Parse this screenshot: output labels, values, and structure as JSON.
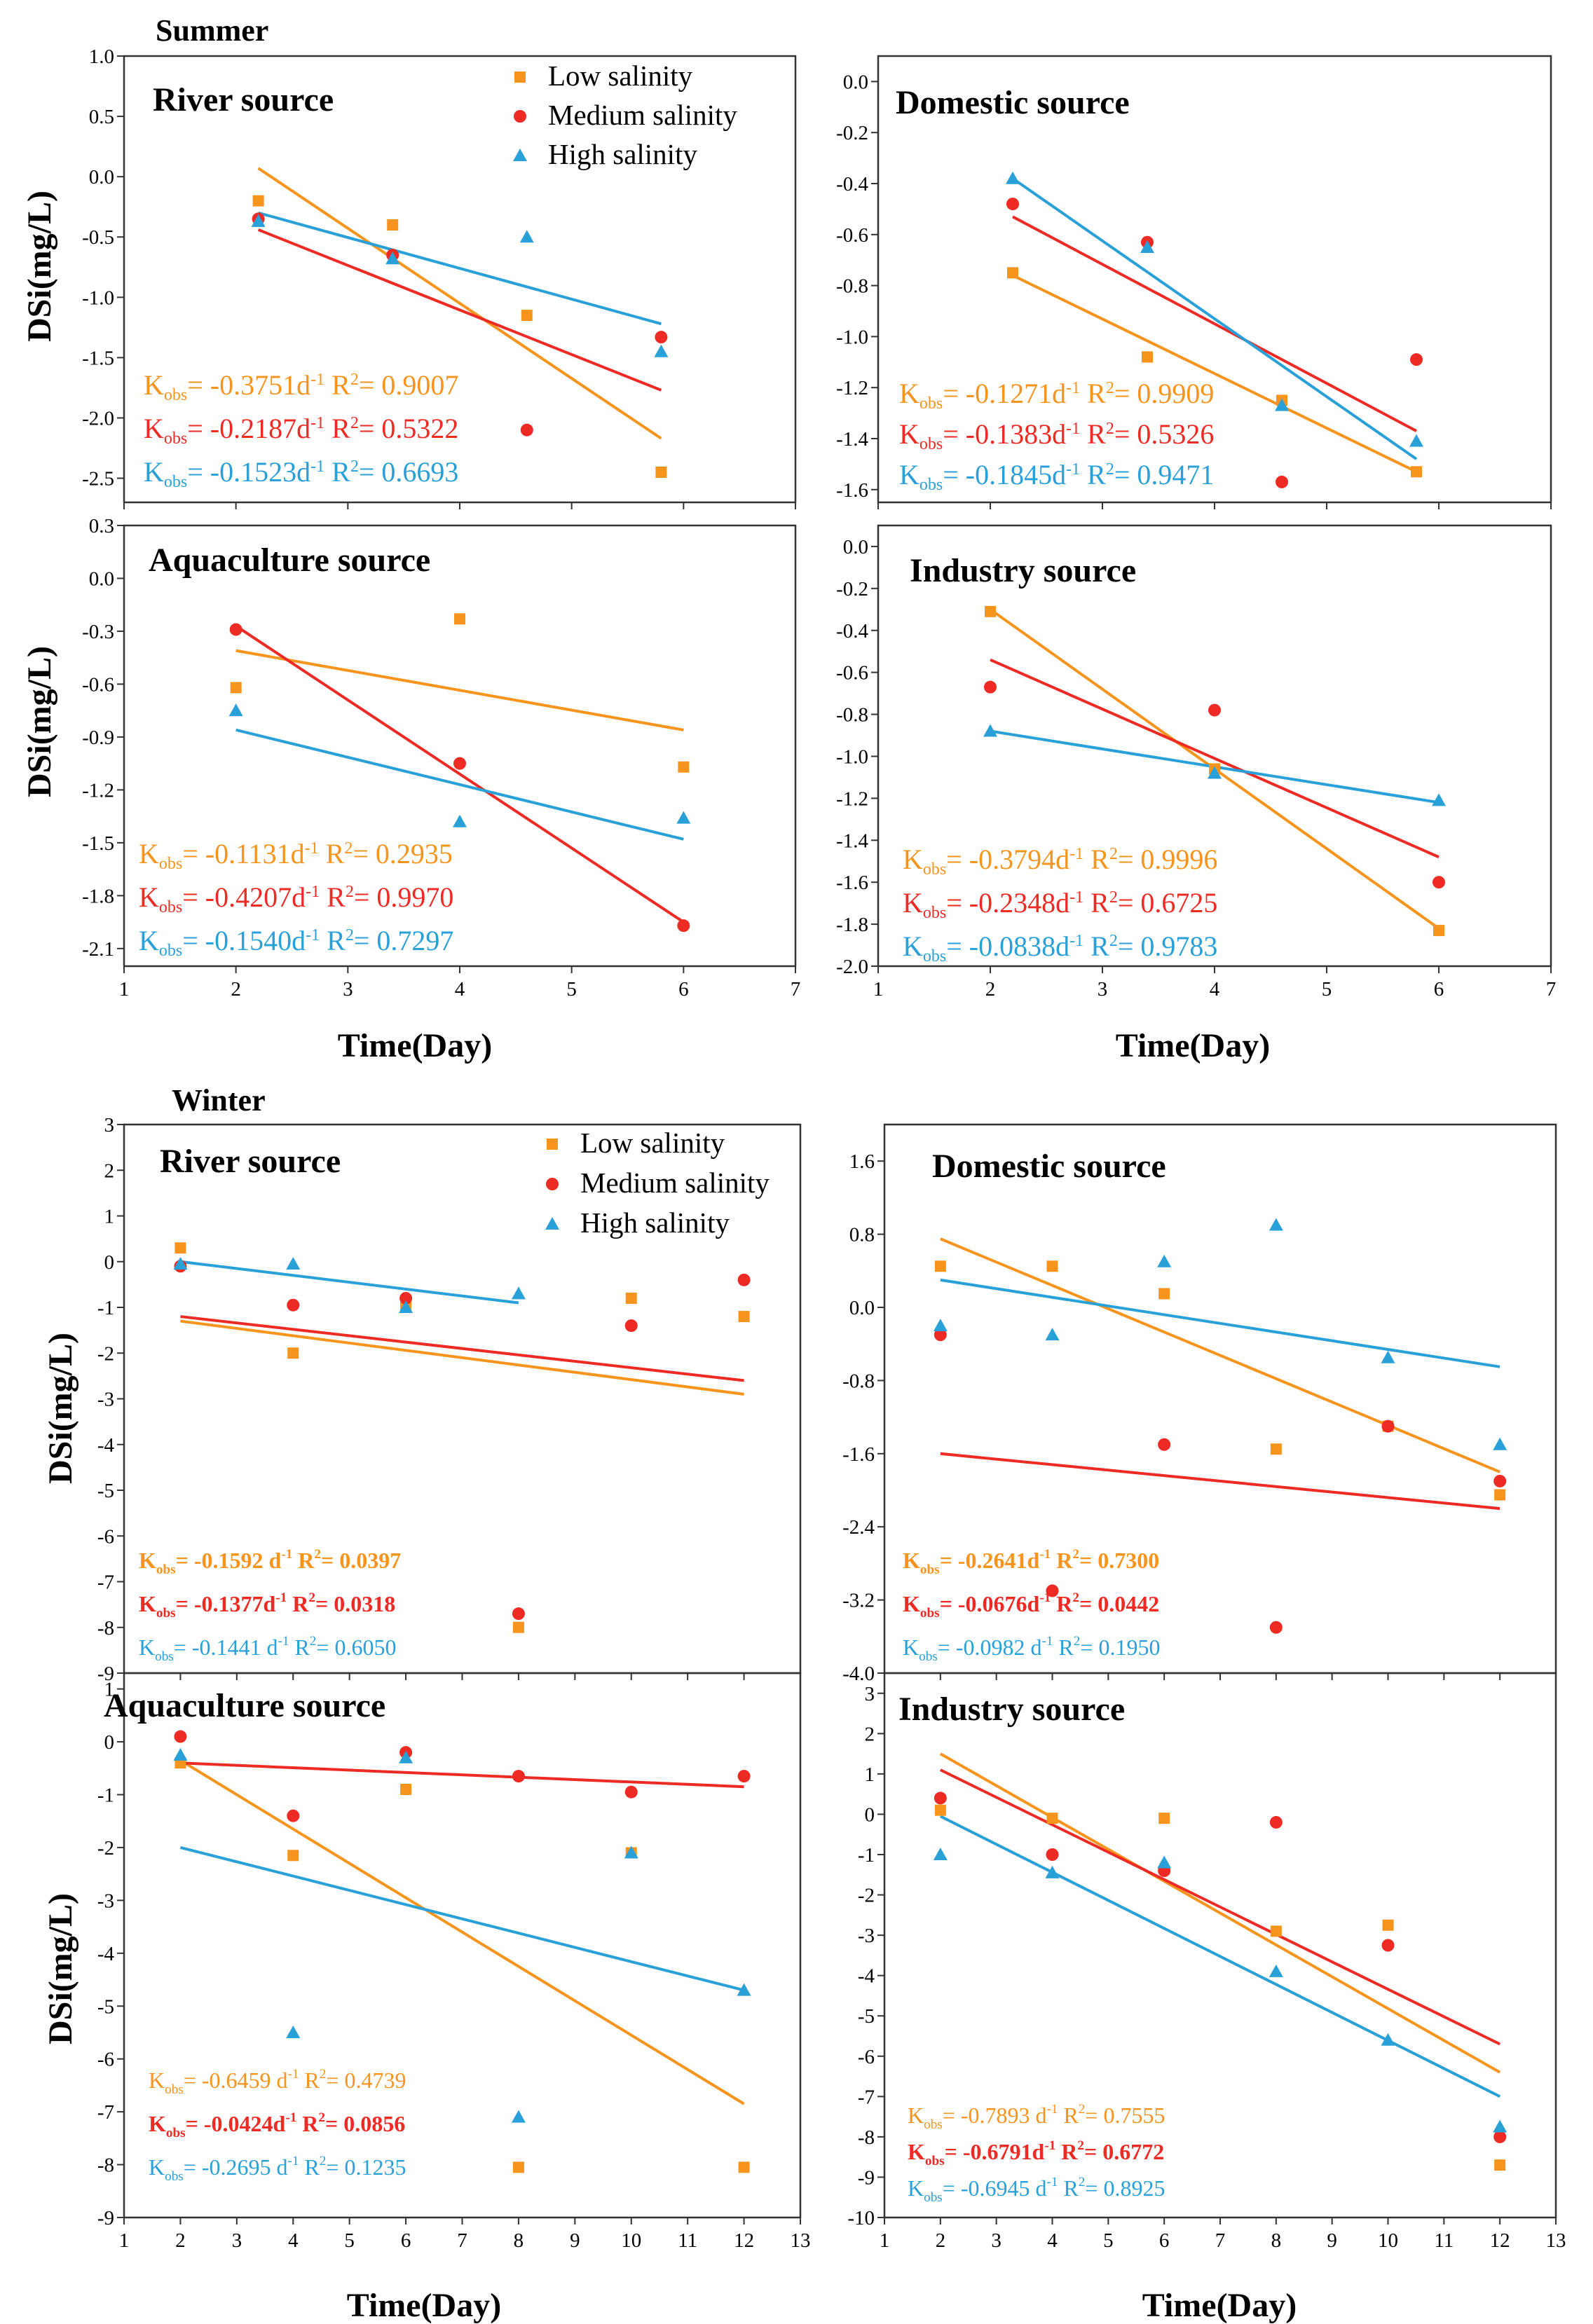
{
  "colors": {
    "low": "#f7941d",
    "medium": "#ee2a24",
    "high": "#2aa0d8"
  },
  "figure": {
    "summer_label": "Summer",
    "winter_label": "Winter",
    "ylabel": "DSi(mg/L)",
    "xlabel": "Time(Day)"
  },
  "legend": [
    "Low salinity",
    "Medium salinity",
    "High salinity"
  ],
  "chart_data": [
    {
      "type": "scatter",
      "season": "Summer",
      "title": "River source",
      "xlim": [
        1,
        7
      ],
      "ylim": [
        -2.7,
        1.0
      ],
      "xticks": [
        1,
        2,
        3,
        4,
        5,
        6,
        7
      ],
      "yticks": [
        1.0,
        0.5,
        0.0,
        -0.5,
        -1.0,
        -1.5,
        -2.0,
        -2.5
      ],
      "ytick_labels": [
        "1.0",
        "0.5",
        "0.0",
        "-0.5",
        "-1.0",
        "-1.5",
        "-2.0",
        "-2.5"
      ],
      "series": [
        {
          "name": "Low salinity",
          "x": [
            2.2,
            3.4,
            4.6,
            5.8
          ],
          "y": [
            -0.2,
            -0.4,
            -1.15,
            -2.45
          ],
          "fit": [
            [
              2.2,
              0.07
            ],
            [
              5.8,
              -2.17
            ]
          ],
          "annotation": {
            "k": "-0.3751d",
            "r2": "0.9007"
          }
        },
        {
          "name": "Medium salinity",
          "x": [
            2.2,
            3.4,
            4.6,
            5.8
          ],
          "y": [
            -0.35,
            -0.65,
            -2.1,
            -1.33
          ],
          "fit": [
            [
              2.2,
              -0.44
            ],
            [
              5.8,
              -1.77
            ]
          ],
          "annotation": {
            "k": "-0.2187d",
            "r2": "0.5322"
          }
        },
        {
          "name": "High salinity",
          "x": [
            2.2,
            3.4,
            4.6,
            5.8
          ],
          "y": [
            -0.37,
            -0.68,
            -0.5,
            -1.45
          ],
          "fit": [
            [
              2.2,
              -0.3
            ],
            [
              5.8,
              -1.22
            ]
          ],
          "annotation": {
            "k": "-0.1523d",
            "r2": "0.6693"
          }
        }
      ]
    },
    {
      "type": "scatter",
      "season": "Summer",
      "title": "Domestic source",
      "xlim": [
        1,
        7
      ],
      "ylim": [
        -1.65,
        0.1
      ],
      "xticks": [
        1,
        2,
        3,
        4,
        5,
        6,
        7
      ],
      "yticks": [
        0.0,
        -0.2,
        -0.4,
        -0.6,
        -0.8,
        -1.0,
        -1.2,
        -1.4,
        -1.6
      ],
      "ytick_labels": [
        "0.0",
        "-0.2",
        "-0.4",
        "-0.6",
        "-0.8",
        "-1.0",
        "-1.2",
        "-1.4",
        "-1.6"
      ],
      "series": [
        {
          "name": "Low salinity",
          "x": [
            2.2,
            3.4,
            4.6,
            5.8
          ],
          "y": [
            -0.75,
            -1.08,
            -1.25,
            -1.53
          ],
          "fit": [
            [
              2.2,
              -0.76
            ],
            [
              5.8,
              -1.53
            ]
          ],
          "annotation": {
            "k": "-0.1271d",
            "r2": "0.9909"
          }
        },
        {
          "name": "Medium salinity",
          "x": [
            2.2,
            3.4,
            4.6,
            5.8
          ],
          "y": [
            -0.48,
            -0.63,
            -1.57,
            -1.09
          ],
          "fit": [
            [
              2.2,
              -0.53
            ],
            [
              5.8,
              -1.37
            ]
          ],
          "annotation": {
            "k": "-0.1383d",
            "r2": "0.5326"
          }
        },
        {
          "name": "High salinity",
          "x": [
            2.2,
            3.4,
            4.6,
            5.8
          ],
          "y": [
            -0.38,
            -0.65,
            -1.27,
            -1.41
          ],
          "fit": [
            [
              2.2,
              -0.38
            ],
            [
              5.8,
              -1.48
            ]
          ],
          "annotation": {
            "k": "-0.1845d",
            "r2": "0.9471"
          }
        }
      ]
    },
    {
      "type": "scatter",
      "season": "Summer",
      "title": "Aquaculture source",
      "xlim": [
        1,
        7
      ],
      "ylim": [
        -2.2,
        0.3
      ],
      "xticks": [
        1,
        2,
        3,
        4,
        5,
        6,
        7
      ],
      "yticks": [
        0.3,
        0.0,
        -0.3,
        -0.6,
        -0.9,
        -1.2,
        -1.5,
        -1.8,
        -2.1
      ],
      "ytick_labels": [
        "0.3",
        "0.0",
        "-0.3",
        "-0.6",
        "-0.9",
        "-1.2",
        "-1.5",
        "-1.8",
        "-2.1"
      ],
      "series": [
        {
          "name": "Low salinity",
          "x": [
            2,
            4,
            6
          ],
          "y": [
            -0.62,
            -0.23,
            -1.07
          ],
          "fit": [
            [
              2,
              -0.41
            ],
            [
              6,
              -0.86
            ]
          ],
          "annotation": {
            "k": "-0.1131d",
            "r2": "0.2935"
          }
        },
        {
          "name": "Medium salinity",
          "x": [
            2,
            4,
            6
          ],
          "y": [
            -0.29,
            -1.05,
            -1.97
          ],
          "fit": [
            [
              2,
              -0.27
            ],
            [
              6,
              -1.95
            ]
          ],
          "annotation": {
            "k": "-0.4207d",
            "r2": "0.9970"
          }
        },
        {
          "name": "High salinity",
          "x": [
            2,
            4,
            6
          ],
          "y": [
            -0.75,
            -1.38,
            -1.36
          ],
          "fit": [
            [
              2,
              -0.86
            ],
            [
              6,
              -1.48
            ]
          ],
          "annotation": {
            "k": "-0.1540d",
            "r2": "0.7297"
          }
        }
      ]
    },
    {
      "type": "scatter",
      "season": "Summer",
      "title": "Industry source",
      "xlim": [
        1,
        7
      ],
      "ylim": [
        -2.0,
        0.1
      ],
      "xticks": [
        1,
        2,
        3,
        4,
        5,
        6,
        7
      ],
      "yticks": [
        0.0,
        -0.2,
        -0.4,
        -0.6,
        -0.8,
        -1.0,
        -1.2,
        -1.4,
        -1.6,
        -1.8,
        -2.0
      ],
      "ytick_labels": [
        "0.0",
        "-0.2",
        "-0.4",
        "-0.6",
        "-0.8",
        "-1.0",
        "-1.2",
        "-1.4",
        "-1.6",
        "-1.8",
        "-2.0"
      ],
      "series": [
        {
          "name": "Low salinity",
          "x": [
            2,
            4,
            6
          ],
          "y": [
            -0.31,
            -1.06,
            -1.83
          ],
          "fit": [
            [
              2,
              -0.3
            ],
            [
              6,
              -1.82
            ]
          ],
          "annotation": {
            "k": "-0.3794d",
            "r2": "0.9996"
          }
        },
        {
          "name": "Medium salinity",
          "x": [
            2,
            4,
            6
          ],
          "y": [
            -0.67,
            -0.78,
            -1.6
          ],
          "fit": [
            [
              2,
              -0.54
            ],
            [
              6,
              -1.48
            ]
          ],
          "annotation": {
            "k": "-0.2348d",
            "r2": "0.6725"
          }
        },
        {
          "name": "High salinity",
          "x": [
            2,
            4,
            6
          ],
          "y": [
            -0.88,
            -1.08,
            -1.21
          ],
          "fit": [
            [
              2,
              -0.88
            ],
            [
              6,
              -1.22
            ]
          ],
          "annotation": {
            "k": "-0.0838d",
            "r2": "0.9783"
          }
        }
      ]
    },
    {
      "type": "scatter",
      "season": "Winter",
      "title": "River source",
      "xlim": [
        1,
        13
      ],
      "ylim": [
        -9,
        3
      ],
      "xticks": [
        1,
        2,
        3,
        4,
        5,
        6,
        7,
        8,
        9,
        10,
        11,
        12,
        13
      ],
      "yticks": [
        3,
        2,
        1,
        0,
        -1,
        -2,
        -3,
        -4,
        -5,
        -6,
        -7,
        -8,
        -9
      ],
      "ytick_labels": [
        "3",
        "2",
        "1",
        "0",
        "-1",
        "-2",
        "-3",
        "-4",
        "-5",
        "-6",
        "-7",
        "-8",
        "-9"
      ],
      "series": [
        {
          "name": "Low salinity",
          "x": [
            2,
            4,
            6,
            8,
            10,
            12
          ],
          "y": [
            0.3,
            -2.0,
            -1.0,
            -8.0,
            -0.8,
            -1.2
          ],
          "fit": [
            [
              2,
              -1.3
            ],
            [
              12,
              -2.9
            ]
          ],
          "annotation": {
            "k": "-0.1592 d",
            "r2": "0.0397"
          }
        },
        {
          "name": "Medium salinity",
          "x": [
            2,
            4,
            6,
            8,
            10,
            12
          ],
          "y": [
            -0.1,
            -0.95,
            -0.8,
            -7.7,
            -1.4,
            -0.4
          ],
          "fit": [
            [
              2,
              -1.2
            ],
            [
              12,
              -2.6
            ]
          ],
          "annotation": {
            "k": "-0.1377d",
            "r2": "0.0318"
          }
        },
        {
          "name": "High salinity",
          "x": [
            2,
            4,
            6,
            8
          ],
          "y": [
            -0.05,
            -0.05,
            -1.0,
            -0.7
          ],
          "fit": [
            [
              2,
              0.0
            ],
            [
              8,
              -0.9
            ]
          ],
          "annotation": {
            "k": "-0.1441 d",
            "r2": "0.6050"
          }
        }
      ]
    },
    {
      "type": "scatter",
      "season": "Winter",
      "title": "Domestic source",
      "xlim": [
        1,
        13
      ],
      "ylim": [
        -4.0,
        2.0
      ],
      "xticks": [
        1,
        2,
        3,
        4,
        5,
        6,
        7,
        8,
        9,
        10,
        11,
        12,
        13
      ],
      "yticks": [
        1.6,
        0.8,
        0.0,
        -0.8,
        -1.6,
        -2.4,
        -3.2,
        -4.0
      ],
      "ytick_labels": [
        "1.6",
        "0.8",
        "0.0",
        "-0.8",
        "-1.6",
        "-2.4",
        "-3.2",
        "-4.0"
      ],
      "series": [
        {
          "name": "Low salinity",
          "x": [
            2,
            4,
            6,
            8,
            10,
            12
          ],
          "y": [
            0.45,
            0.45,
            0.15,
            -1.55,
            -1.3,
            -2.05
          ],
          "fit": [
            [
              2,
              0.75
            ],
            [
              12,
              -1.8
            ]
          ],
          "annotation": {
            "k": "-0.2641d",
            "r2": "0.7300"
          }
        },
        {
          "name": "Medium salinity",
          "x": [
            2,
            4,
            6,
            8,
            10,
            12
          ],
          "y": [
            -0.3,
            -3.1,
            -1.5,
            -3.5,
            -1.3,
            -1.9
          ],
          "fit": [
            [
              2,
              -1.6
            ],
            [
              12,
              -2.2
            ]
          ],
          "annotation": {
            "k": "-0.0676d",
            "r2": "0.0442"
          }
        },
        {
          "name": "High salinity",
          "x": [
            2,
            4,
            6,
            8,
            10,
            12
          ],
          "y": [
            -0.2,
            -0.3,
            0.5,
            0.9,
            -0.55,
            -1.5
          ],
          "fit": [
            [
              2,
              0.3
            ],
            [
              12,
              -0.65
            ]
          ],
          "annotation": {
            "k": "-0.0982 d",
            "r2": "0.1950"
          }
        }
      ]
    },
    {
      "type": "scatter",
      "season": "Winter",
      "title": "Aquaculture source",
      "xlim": [
        1,
        13
      ],
      "ylim": [
        -9,
        1.3
      ],
      "xticks": [
        1,
        2,
        3,
        4,
        5,
        6,
        7,
        8,
        9,
        10,
        11,
        12,
        13
      ],
      "yticks": [
        1,
        0,
        -1,
        -2,
        -3,
        -4,
        -5,
        -6,
        -7,
        -8,
        -9
      ],
      "ytick_labels": [
        "1",
        "0",
        "-1",
        "-2",
        "-3",
        "-4",
        "-5",
        "-6",
        "-7",
        "-8",
        "-9"
      ],
      "series": [
        {
          "name": "Low salinity",
          "x": [
            2,
            4,
            6,
            8,
            10,
            12
          ],
          "y": [
            -0.4,
            -2.15,
            -0.9,
            -8.05,
            -2.1,
            -8.05
          ],
          "fit": [
            [
              2,
              -0.35
            ],
            [
              12,
              -6.85
            ]
          ],
          "annotation": {
            "k": "-0.6459 d",
            "r2": "0.4739"
          }
        },
        {
          "name": "Medium salinity",
          "x": [
            2,
            4,
            6,
            8,
            10,
            12
          ],
          "y": [
            0.1,
            -1.4,
            -0.2,
            -0.65,
            -0.95,
            -0.65
          ],
          "fit": [
            [
              2,
              -0.4
            ],
            [
              12,
              -0.85
            ]
          ],
          "annotation": {
            "k": "-0.0424d",
            "r2": "0.0856"
          }
        },
        {
          "name": "High salinity",
          "x": [
            2,
            4,
            6,
            8,
            10,
            12
          ],
          "y": [
            -0.25,
            -5.5,
            -0.3,
            -7.1,
            -2.1,
            -4.7
          ],
          "fit": [
            [
              2,
              -2.0
            ],
            [
              12,
              -4.7
            ]
          ],
          "annotation": {
            "k": "-0.2695 d",
            "r2": "0.1235"
          }
        }
      ]
    },
    {
      "type": "scatter",
      "season": "Winter",
      "title": "Industry source",
      "xlim": [
        1,
        13
      ],
      "ylim": [
        -10,
        3.5
      ],
      "xticks": [
        1,
        2,
        3,
        4,
        5,
        6,
        7,
        8,
        9,
        10,
        11,
        12,
        13
      ],
      "yticks": [
        3,
        2,
        1,
        0,
        -1,
        -2,
        -3,
        -4,
        -5,
        -6,
        -7,
        -8,
        -9,
        -10
      ],
      "ytick_labels": [
        "3",
        "2",
        "1",
        "0",
        "-1",
        "-2",
        "-3",
        "-4",
        "-5",
        "-6",
        "-7",
        "-8",
        "-9",
        "-10"
      ],
      "series": [
        {
          "name": "Low salinity",
          "x": [
            2,
            4,
            6,
            8,
            10,
            12
          ],
          "y": [
            0.1,
            -0.1,
            -0.1,
            -2.9,
            -2.75,
            -8.7
          ],
          "fit": [
            [
              2,
              1.5
            ],
            [
              12,
              -6.4
            ]
          ],
          "annotation": {
            "k": "-0.7893 d",
            "r2": "0.7555"
          }
        },
        {
          "name": "Medium salinity",
          "x": [
            2,
            4,
            6,
            8,
            10,
            12
          ],
          "y": [
            0.4,
            -1.0,
            -1.4,
            -0.2,
            -3.25,
            -8.0
          ],
          "fit": [
            [
              2,
              1.1
            ],
            [
              12,
              -5.7
            ]
          ],
          "annotation": {
            "k": "-0.6791d",
            "r2": "0.6772"
          }
        },
        {
          "name": "High salinity",
          "x": [
            2,
            4,
            6,
            8,
            10,
            12
          ],
          "y": [
            -1.0,
            -1.45,
            -1.2,
            -3.9,
            -5.6,
            -7.75
          ],
          "fit": [
            [
              2,
              -0.05
            ],
            [
              12,
              -7.0
            ]
          ],
          "annotation": {
            "k": "-0.6945 d",
            "r2": "0.8925"
          }
        }
      ]
    }
  ]
}
